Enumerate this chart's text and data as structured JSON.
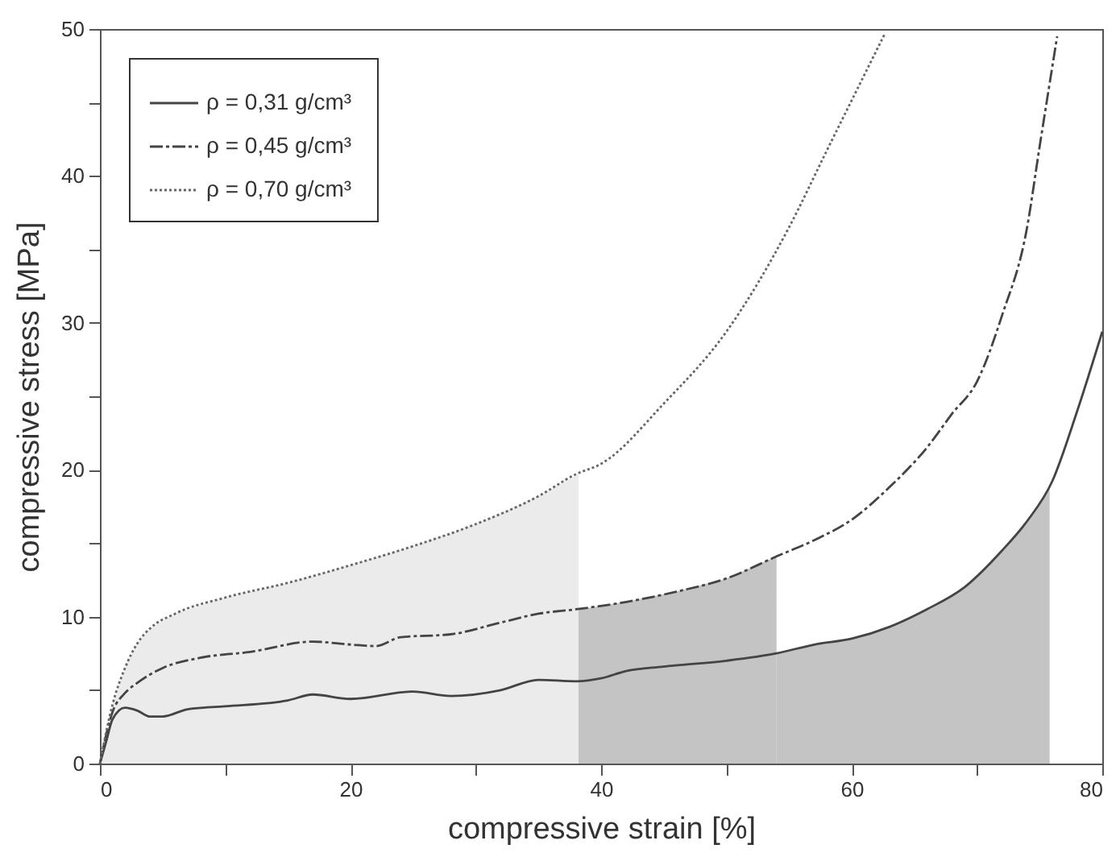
{
  "chart_data": {
    "type": "line",
    "xlabel": "compressive strain  [%]",
    "ylabel": "compressive stress  [MPa]",
    "xlim": [
      0,
      80
    ],
    "ylim": [
      0,
      50
    ],
    "xticks": [
      0,
      {
        "value": 10,
        "label": null
      },
      20,
      {
        "value": 30,
        "label": null
      },
      40,
      {
        "value": 50,
        "label": null
      },
      60,
      {
        "value": 70,
        "label": null
      },
      80
    ],
    "yticks": [
      0,
      {
        "value": 5,
        "label": null
      },
      10,
      {
        "value": 15,
        "label": null
      },
      20,
      {
        "value": 25,
        "label": null
      },
      30,
      {
        "value": 35,
        "label": null
      },
      40,
      {
        "value": 45,
        "label": null
      },
      50
    ],
    "grid": false,
    "legend": "top left",
    "series": [
      {
        "type": "area",
        "color": "#ebebeb",
        "x": [
          0,
          1,
          2,
          3,
          4,
          6,
          10,
          15,
          20,
          25,
          30,
          35,
          38.2
        ],
        "values": [
          0,
          4,
          6.5,
          8.2,
          9.2,
          10.2,
          11.3,
          12.3,
          13.5,
          14.8,
          16.3,
          18.2,
          19.7
        ]
      },
      {
        "type": "area",
        "color": "#c4c4c4",
        "x": [
          38.2,
          42,
          46,
          50,
          54
        ],
        "values": [
          10.5,
          11.0,
          11.7,
          12.6,
          14.1
        ]
      },
      {
        "type": "area",
        "color": "#c4c4c4",
        "x": [
          54,
          57,
          60,
          63,
          66,
          69,
          72,
          74,
          75.8
        ],
        "values": [
          7.5,
          8.1,
          8.5,
          9.3,
          10.5,
          12.0,
          14.5,
          16.5,
          18.8
        ]
      },
      {
        "name": "ρ  = 0,31 g/cm³",
        "color": "#444444",
        "line_style": "solid",
        "x": [
          0,
          0.5,
          1,
          2,
          3,
          4,
          5,
          7,
          10,
          15,
          17,
          20,
          25,
          28,
          32,
          35,
          38,
          40,
          42,
          45,
          50,
          54,
          57,
          60,
          63,
          66,
          69,
          72,
          74,
          76,
          78,
          80
        ],
        "values": [
          0,
          1.5,
          3,
          3.8,
          3.6,
          3.2,
          3.2,
          3.7,
          3.9,
          4.3,
          4.7,
          4.4,
          4.9,
          4.6,
          5.0,
          5.7,
          5.6,
          5.8,
          6.3,
          6.6,
          7.0,
          7.5,
          8.1,
          8.5,
          9.3,
          10.5,
          12.0,
          14.5,
          16.5,
          19.2,
          24,
          29.4
        ]
      },
      {
        "name": "ρ  = 0,45 g/cm³",
        "color": "#444444",
        "line_style": "dashed",
        "x": [
          0,
          1,
          2,
          3,
          5,
          8,
          12,
          17,
          20,
          22,
          24,
          28,
          32,
          35,
          38,
          42,
          46,
          50,
          54,
          57,
          60,
          63,
          66,
          68,
          70,
          72,
          74,
          75,
          76.4
        ],
        "values": [
          0,
          3.5,
          4.8,
          5.5,
          6.5,
          7.2,
          7.6,
          8.3,
          8.1,
          8.0,
          8.6,
          8.8,
          9.6,
          10.2,
          10.5,
          11.0,
          11.7,
          12.6,
          14.1,
          15.2,
          16.6,
          18.8,
          21.5,
          23.8,
          26,
          30.5,
          36.5,
          42,
          49.5
        ]
      },
      {
        "name": "ρ  = 0,70 g/cm³",
        "color": "#666666",
        "line_style": "dotted",
        "x": [
          0,
          1,
          2,
          3,
          4,
          6,
          10,
          15,
          20,
          25,
          30,
          35,
          38,
          40,
          45,
          50,
          55,
          58,
          62.6
        ],
        "values": [
          0,
          4,
          6.5,
          8.2,
          9.2,
          10.2,
          11.3,
          12.3,
          13.5,
          14.8,
          16.3,
          18.2,
          19.7,
          20.4,
          24.5,
          29.4,
          36.5,
          41.7,
          49.6
        ]
      }
    ]
  }
}
